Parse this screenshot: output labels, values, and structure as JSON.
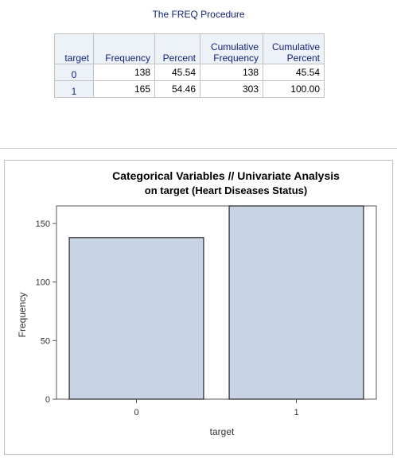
{
  "proc_title": "The FREQ Procedure",
  "table": {
    "headers": [
      "target",
      "Frequency",
      "Percent",
      "Cumulative Frequency",
      "Cumulative Percent"
    ],
    "header_lines": [
      [
        "target"
      ],
      [
        "Frequency"
      ],
      [
        "Percent"
      ],
      [
        "Cumulative",
        "Frequency"
      ],
      [
        "Cumulative",
        "Percent"
      ]
    ],
    "rows": [
      {
        "target": "0",
        "frequency": "138",
        "percent": "45.54",
        "cum_frequency": "138",
        "cum_percent": "45.54"
      },
      {
        "target": "1",
        "frequency": "165",
        "percent": "54.46",
        "cum_frequency": "303",
        "cum_percent": "100.00"
      }
    ],
    "colors": {
      "header_bg": "#edf2f9",
      "header_text": "#112277",
      "border": "#c1c1c1"
    }
  },
  "chart_data": {
    "type": "bar",
    "title": "Categorical Variables // Univariate Analysis",
    "subtitle": "on target (Heart Diseases Status)",
    "categories": [
      "0",
      "1"
    ],
    "values": [
      138,
      165
    ],
    "xlabel": "target",
    "ylabel": "Frequency",
    "ylim": [
      0,
      165
    ],
    "yticks": [
      0,
      50,
      100,
      150
    ],
    "grid": false,
    "bar_fill": "#c8d4e5",
    "bar_stroke": "#333333"
  }
}
